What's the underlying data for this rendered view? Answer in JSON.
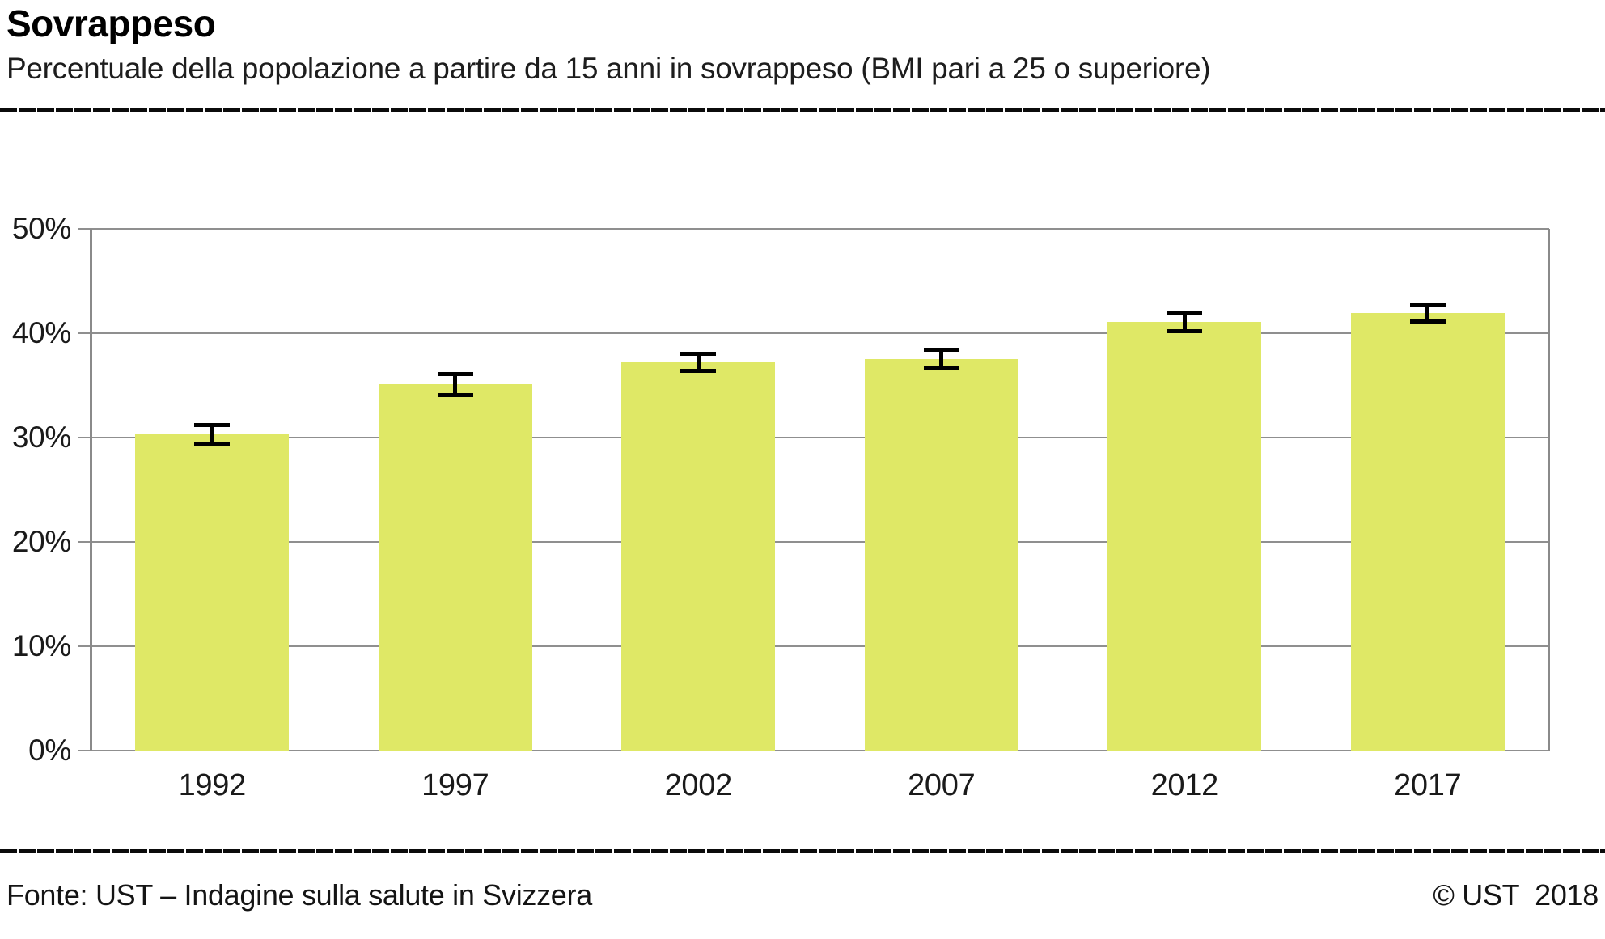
{
  "header": {
    "title": "Sovrappeso",
    "subtitle": "Percentuale della popolazione a partire da 15 anni in sovrappeso (BMI pari a 25 o superiore)"
  },
  "footer": {
    "source": "Fonte: UST – Indagine sulla salute in Svizzera",
    "copyright": "© UST  2018"
  },
  "colors": {
    "bar_fill": "#dfe866",
    "error_bar": "#000000",
    "grid_gray": "#8f8f8f",
    "rule_black": "#0b0b0b"
  },
  "chart_data": {
    "type": "bar",
    "title": "Sovrappeso",
    "subtitle": "Percentuale della popolazione a partire da 15 anni in sovrappeso (BMI pari a 25 o superiore)",
    "categories": [
      "1992",
      "1997",
      "2002",
      "2007",
      "2012",
      "2017"
    ],
    "values": [
      30.3,
      35.1,
      37.2,
      37.5,
      41.1,
      41.9
    ],
    "error_margins": [
      0.9,
      1.0,
      0.8,
      0.9,
      0.9,
      0.8
    ],
    "error_bars": true,
    "xlabel": "",
    "ylabel": "",
    "ylim": [
      0,
      50
    ],
    "yticks": [
      0,
      10,
      20,
      30,
      40,
      50
    ],
    "ytick_labels": [
      "0%",
      "10%",
      "20%",
      "30%",
      "40%",
      "50%"
    ],
    "grid": true,
    "legend": false,
    "bar_color": "#dfe866",
    "source": "Fonte: UST – Indagine sulla salute in Svizzera",
    "copyright": "© UST 2018"
  }
}
